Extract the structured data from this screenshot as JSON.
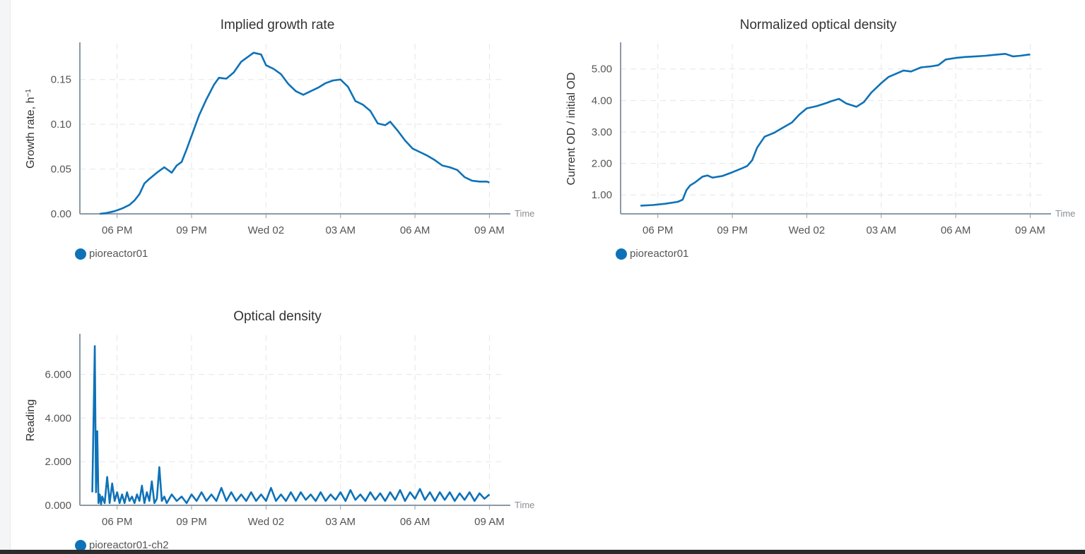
{
  "colors": {
    "series": "#0e72b8",
    "axis": "#8c9aa6",
    "grid": "#e3e6e9",
    "text": "#555555"
  },
  "charts": [
    {
      "title": "Implied growth rate",
      "ylabel": "Growth rate, h",
      "ylabel_sup": "−1",
      "xlabel": "Time",
      "legend": "pioreactor01"
    },
    {
      "title": "Normalized optical density",
      "ylabel": "Current OD / initial OD",
      "xlabel": "Time",
      "legend": "pioreactor01"
    },
    {
      "title": "Optical density",
      "ylabel": "Reading",
      "xlabel": "Time",
      "legend": "pioreactor01-ch2"
    }
  ],
  "chart_data": [
    {
      "type": "line",
      "title": "Implied growth rate",
      "xlabel": "Time",
      "ylabel": "Growth rate, h⁻¹",
      "x_ticks": [
        {
          "h": 18,
          "label": "06 PM"
        },
        {
          "h": 21,
          "label": "09 PM"
        },
        {
          "h": 24,
          "label": "Wed 02"
        },
        {
          "h": 27,
          "label": "03 AM"
        },
        {
          "h": 30,
          "label": "06 AM"
        },
        {
          "h": 33,
          "label": "09 AM"
        }
      ],
      "xlim": [
        16.5,
        33.5
      ],
      "ylim": [
        0,
        0.19
      ],
      "y_ticks": [
        0,
        0.05,
        0.1,
        0.15
      ],
      "y_tick_labels": [
        "0.00",
        "0.05",
        "0.10",
        "0.15"
      ],
      "grid": true,
      "legend_position": "bottom-left",
      "series": [
        {
          "name": "pioreactor01",
          "x": [
            17.3,
            17.6,
            17.9,
            18.2,
            18.5,
            18.7,
            18.9,
            19.1,
            19.3,
            19.6,
            19.9,
            20.2,
            20.4,
            20.6,
            20.8,
            21.0,
            21.3,
            21.6,
            21.9,
            22.1,
            22.4,
            22.7,
            23.0,
            23.3,
            23.5,
            23.8,
            24.0,
            24.3,
            24.6,
            24.9,
            25.2,
            25.5,
            25.8,
            26.1,
            26.4,
            26.7,
            27.0,
            27.3,
            27.6,
            27.9,
            28.2,
            28.5,
            28.8,
            29.0,
            29.3,
            29.6,
            29.9,
            30.2,
            30.5,
            30.8,
            31.1,
            31.4,
            31.7,
            32.0,
            32.3,
            32.6,
            32.9,
            33.0
          ],
          "values": [
            0.0,
            0.001,
            0.003,
            0.006,
            0.01,
            0.015,
            0.022,
            0.034,
            0.039,
            0.046,
            0.052,
            0.046,
            0.054,
            0.058,
            0.072,
            0.087,
            0.11,
            0.128,
            0.144,
            0.152,
            0.151,
            0.158,
            0.17,
            0.176,
            0.18,
            0.178,
            0.166,
            0.162,
            0.156,
            0.145,
            0.137,
            0.133,
            0.137,
            0.141,
            0.146,
            0.149,
            0.15,
            0.142,
            0.126,
            0.122,
            0.115,
            0.101,
            0.099,
            0.103,
            0.093,
            0.082,
            0.073,
            0.069,
            0.065,
            0.06,
            0.054,
            0.052,
            0.049,
            0.041,
            0.037,
            0.036,
            0.036,
            0.035
          ]
        }
      ]
    },
    {
      "type": "line",
      "title": "Normalized optical density",
      "xlabel": "Time",
      "ylabel": "Current OD / initial OD",
      "x_ticks": [
        {
          "h": 18,
          "label": "06 PM"
        },
        {
          "h": 21,
          "label": "09 PM"
        },
        {
          "h": 24,
          "label": "Wed 02"
        },
        {
          "h": 27,
          "label": "03 AM"
        },
        {
          "h": 30,
          "label": "06 AM"
        },
        {
          "h": 33,
          "label": "09 AM"
        }
      ],
      "xlim": [
        16.5,
        33.5
      ],
      "ylim": [
        0.4,
        5.8
      ],
      "y_ticks": [
        1,
        2,
        3,
        4,
        5
      ],
      "y_tick_labels": [
        "1.00",
        "2.00",
        "3.00",
        "4.00",
        "5.00"
      ],
      "grid": true,
      "legend_position": "bottom-left",
      "series": [
        {
          "name": "pioreactor01",
          "x": [
            17.3,
            17.8,
            18.3,
            18.8,
            19.0,
            19.15,
            19.3,
            19.5,
            19.8,
            20.0,
            20.2,
            20.6,
            21.0,
            21.4,
            21.6,
            21.8,
            22.0,
            22.3,
            22.7,
            23.0,
            23.4,
            23.7,
            24.0,
            24.4,
            24.8,
            25.0,
            25.3,
            25.6,
            26.0,
            26.3,
            26.6,
            27.0,
            27.3,
            27.6,
            27.9,
            28.2,
            28.6,
            29.0,
            29.3,
            29.6,
            30.0,
            30.4,
            30.8,
            31.2,
            31.6,
            32.0,
            32.3,
            32.6,
            32.9,
            33.0
          ],
          "values": [
            0.66,
            0.68,
            0.72,
            0.78,
            0.85,
            1.15,
            1.3,
            1.4,
            1.58,
            1.62,
            1.55,
            1.6,
            1.72,
            1.85,
            1.92,
            2.1,
            2.5,
            2.85,
            2.98,
            3.12,
            3.3,
            3.55,
            3.75,
            3.82,
            3.92,
            3.98,
            4.05,
            3.9,
            3.8,
            3.95,
            4.25,
            4.55,
            4.75,
            4.85,
            4.95,
            4.92,
            5.05,
            5.08,
            5.12,
            5.3,
            5.35,
            5.38,
            5.4,
            5.42,
            5.45,
            5.48,
            5.4,
            5.42,
            5.45,
            5.46
          ]
        }
      ]
    },
    {
      "type": "line",
      "title": "Optical density",
      "xlabel": "Time",
      "ylabel": "Reading",
      "x_ticks": [
        {
          "h": 18,
          "label": "06 PM"
        },
        {
          "h": 21,
          "label": "09 PM"
        },
        {
          "h": 24,
          "label": "Wed 02"
        },
        {
          "h": 27,
          "label": "03 AM"
        },
        {
          "h": 30,
          "label": "06 AM"
        },
        {
          "h": 33,
          "label": "09 AM"
        }
      ],
      "xlim": [
        16.5,
        33.5
      ],
      "ylim": [
        0,
        7.8
      ],
      "y_ticks": [
        0,
        2,
        4,
        6
      ],
      "y_tick_labels": [
        "0.000",
        "2.000",
        "4.000",
        "6.000"
      ],
      "grid": true,
      "legend_position": "bottom-left",
      "series": [
        {
          "name": "pioreactor01-ch2",
          "x": [
            17.0,
            17.1,
            17.15,
            17.2,
            17.25,
            17.3,
            17.35,
            17.4,
            17.5,
            17.6,
            17.7,
            17.8,
            17.9,
            18.0,
            18.1,
            18.2,
            18.3,
            18.4,
            18.5,
            18.6,
            18.7,
            18.8,
            18.9,
            19.0,
            19.1,
            19.2,
            19.3,
            19.4,
            19.5,
            19.6,
            19.7,
            19.8,
            19.9,
            20.0,
            20.2,
            20.4,
            20.6,
            20.8,
            21.0,
            21.2,
            21.4,
            21.6,
            21.8,
            22.0,
            22.2,
            22.4,
            22.6,
            22.8,
            23.0,
            23.2,
            23.4,
            23.6,
            23.8,
            24.0,
            24.2,
            24.4,
            24.6,
            24.8,
            25.0,
            25.2,
            25.4,
            25.6,
            25.8,
            26.0,
            26.2,
            26.4,
            26.6,
            26.8,
            27.0,
            27.2,
            27.4,
            27.6,
            27.8,
            28.0,
            28.2,
            28.4,
            28.6,
            28.8,
            29.0,
            29.2,
            29.4,
            29.6,
            29.8,
            30.0,
            30.2,
            30.4,
            30.6,
            30.8,
            31.0,
            31.2,
            31.4,
            31.6,
            31.8,
            32.0,
            32.2,
            32.4,
            32.6,
            32.8,
            33.0
          ],
          "values": [
            0.6,
            7.3,
            0.6,
            3.4,
            0.1,
            0.5,
            0.05,
            0.4,
            0.1,
            1.3,
            0.1,
            1.0,
            0.2,
            0.6,
            0.1,
            0.5,
            0.1,
            0.6,
            0.2,
            0.4,
            0.1,
            0.5,
            0.2,
            0.9,
            0.1,
            0.6,
            0.2,
            1.1,
            0.1,
            0.3,
            1.75,
            0.2,
            0.4,
            0.1,
            0.5,
            0.2,
            0.4,
            0.1,
            0.5,
            0.2,
            0.6,
            0.2,
            0.5,
            0.2,
            0.8,
            0.2,
            0.6,
            0.2,
            0.5,
            0.2,
            0.6,
            0.2,
            0.5,
            0.2,
            0.8,
            0.2,
            0.5,
            0.2,
            0.6,
            0.2,
            0.6,
            0.25,
            0.5,
            0.2,
            0.6,
            0.2,
            0.5,
            0.25,
            0.6,
            0.2,
            0.7,
            0.25,
            0.5,
            0.2,
            0.6,
            0.25,
            0.55,
            0.2,
            0.6,
            0.25,
            0.7,
            0.2,
            0.6,
            0.3,
            0.75,
            0.25,
            0.6,
            0.2,
            0.6,
            0.25,
            0.6,
            0.2,
            0.55,
            0.25,
            0.6,
            0.2,
            0.55,
            0.3,
            0.5
          ]
        }
      ]
    }
  ]
}
